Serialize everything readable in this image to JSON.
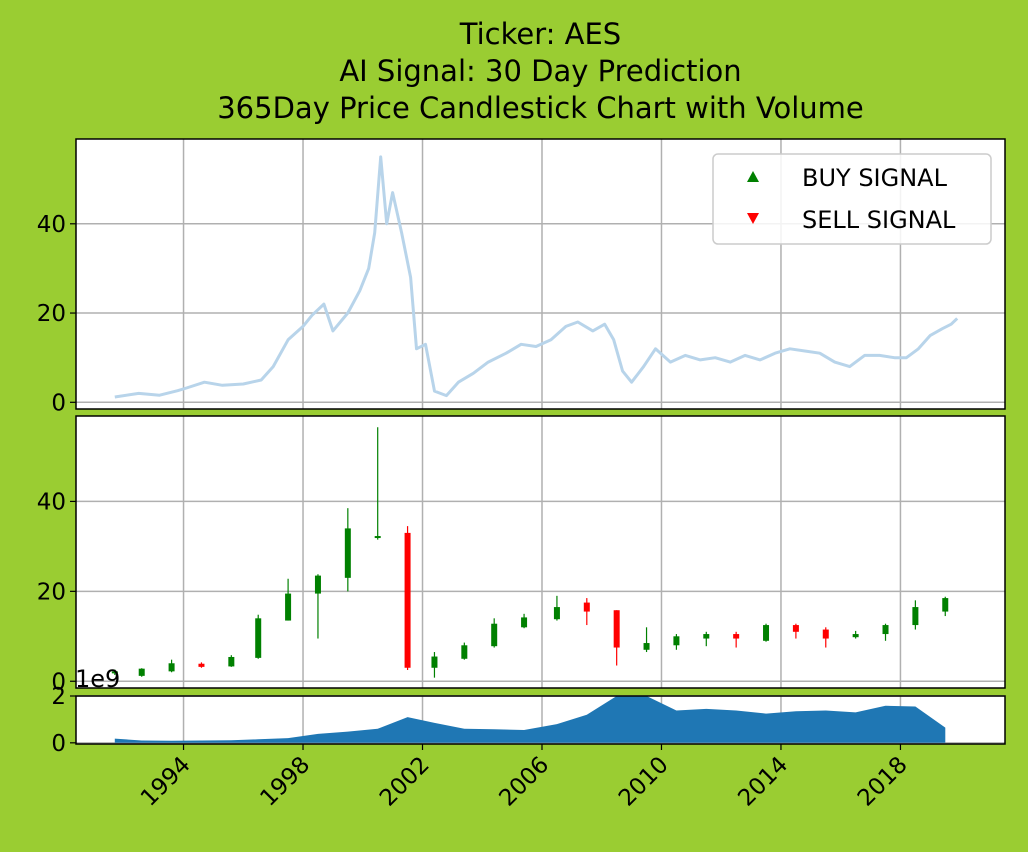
{
  "titles": {
    "line1": "Ticker: AES",
    "line2": "AI Signal: 30 Day Prediction",
    "line3": "365Day Price Candlestick Chart with Volume"
  },
  "legend": {
    "buy": "BUY SIGNAL",
    "sell": "SELL SIGNAL",
    "buy_color": "#008000",
    "sell_color": "#ff0000"
  },
  "volume_scale_label": "1e9",
  "colors": {
    "background": "#9acd32",
    "axes_bg": "#ffffff",
    "line": "#b8d4ea",
    "up": "#008000",
    "down": "#ff0000",
    "volume": "#1f77b4",
    "grid": "#b0b0b0"
  },
  "chart_data": [
    {
      "type": "line",
      "panel": "price",
      "xlim": [
        1990.4,
        2021.5
      ],
      "ylim": [
        -1.5,
        59
      ],
      "yticks": [
        0,
        20,
        40
      ],
      "x": [
        1991.7,
        1992.5,
        1993.2,
        1993.8,
        1994.1,
        1994.7,
        1995.3,
        1996.0,
        1996.6,
        1997.0,
        1997.5,
        1998.0,
        1998.3,
        1998.7,
        1999.0,
        1999.5,
        1999.9,
        2000.2,
        2000.4,
        2000.6,
        2000.8,
        2001.0,
        2001.3,
        2001.6,
        2001.8,
        2002.1,
        2002.4,
        2002.8,
        2003.2,
        2003.7,
        2004.2,
        2004.8,
        2005.3,
        2005.8,
        2006.3,
        2006.8,
        2007.2,
        2007.7,
        2008.1,
        2008.4,
        2008.7,
        2009.0,
        2009.4,
        2009.8,
        2010.3,
        2010.8,
        2011.3,
        2011.8,
        2012.3,
        2012.8,
        2013.3,
        2013.8,
        2014.3,
        2014.8,
        2015.3,
        2015.8,
        2016.3,
        2016.8,
        2017.3,
        2017.8,
        2018.2,
        2018.6,
        2019.0,
        2019.4,
        2019.7,
        2019.9
      ],
      "y": [
        1.2,
        2.0,
        1.6,
        2.6,
        3.2,
        4.5,
        3.8,
        4.1,
        5.0,
        8.0,
        14.0,
        17.0,
        19.5,
        22.0,
        16.0,
        20.0,
        25.0,
        30.0,
        38.0,
        55.0,
        40.0,
        47.0,
        38.0,
        28.0,
        12.0,
        13.0,
        2.5,
        1.5,
        4.5,
        6.5,
        9.0,
        11.0,
        13.0,
        12.5,
        14.0,
        17.0,
        18.0,
        16.0,
        17.5,
        14.0,
        7.0,
        4.5,
        8.0,
        12.0,
        9.0,
        10.5,
        9.5,
        10.0,
        9.0,
        10.5,
        9.5,
        11.0,
        12.0,
        11.5,
        11.0,
        9.0,
        8.0,
        10.5,
        10.5,
        10.0,
        10.0,
        12.0,
        15.0,
        16.5,
        17.5,
        18.8
      ]
    },
    {
      "type": "candlestick",
      "panel": "candles",
      "xlim": [
        1990.4,
        2021.5
      ],
      "ylim": [
        -1.5,
        59
      ],
      "yticks": [
        0,
        20,
        40
      ],
      "candles": [
        {
          "x": 1991.7,
          "open": 1.8,
          "close": 2.2,
          "high": 2.6,
          "low": 1.4
        },
        {
          "x": 1992.6,
          "open": 1.2,
          "close": 2.8,
          "high": 2.9,
          "low": 1.0
        },
        {
          "x": 1993.6,
          "open": 2.2,
          "close": 4.0,
          "high": 4.8,
          "low": 2.0
        },
        {
          "x": 1994.6,
          "open": 3.9,
          "close": 3.2,
          "high": 4.2,
          "low": 3.0
        },
        {
          "x": 1995.6,
          "open": 3.3,
          "close": 5.4,
          "high": 5.8,
          "low": 3.2
        },
        {
          "x": 1996.5,
          "open": 5.2,
          "close": 14.0,
          "high": 14.8,
          "low": 5.0
        },
        {
          "x": 1997.5,
          "open": 13.5,
          "close": 19.5,
          "high": 22.8,
          "low": 13.5
        },
        {
          "x": 1998.5,
          "open": 19.5,
          "close": 23.5,
          "high": 23.8,
          "low": 9.5
        },
        {
          "x": 1999.5,
          "open": 23.0,
          "close": 34.0,
          "high": 38.5,
          "low": 20.0
        },
        {
          "x": 2000.5,
          "open": 32.0,
          "close": 32.3,
          "high": 56.5,
          "low": 31.5
        },
        {
          "x": 2001.5,
          "open": 33.0,
          "close": 3.0,
          "high": 34.5,
          "low": 2.5
        },
        {
          "x": 2002.4,
          "open": 3.0,
          "close": 5.5,
          "high": 6.5,
          "low": 0.8
        },
        {
          "x": 2003.4,
          "open": 5.0,
          "close": 8.0,
          "high": 8.6,
          "low": 4.8
        },
        {
          "x": 2004.4,
          "open": 7.8,
          "close": 12.8,
          "high": 14.0,
          "low": 7.5
        },
        {
          "x": 2005.4,
          "open": 12.0,
          "close": 14.2,
          "high": 15.0,
          "low": 11.8
        },
        {
          "x": 2006.5,
          "open": 13.8,
          "close": 16.5,
          "high": 19.0,
          "low": 13.5
        },
        {
          "x": 2007.5,
          "open": 17.5,
          "close": 15.5,
          "high": 18.5,
          "low": 12.5
        },
        {
          "x": 2008.5,
          "open": 15.8,
          "close": 7.5,
          "high": 15.8,
          "low": 3.5
        },
        {
          "x": 2009.5,
          "open": 7.0,
          "close": 8.5,
          "high": 12.0,
          "low": 6.5
        },
        {
          "x": 2010.5,
          "open": 8.0,
          "close": 10.0,
          "high": 10.5,
          "low": 7.0
        },
        {
          "x": 2011.5,
          "open": 9.5,
          "close": 10.5,
          "high": 11.0,
          "low": 7.8
        },
        {
          "x": 2012.5,
          "open": 10.5,
          "close": 9.5,
          "high": 11.0,
          "low": 7.5
        },
        {
          "x": 2013.5,
          "open": 9.0,
          "close": 12.5,
          "high": 12.8,
          "low": 8.8
        },
        {
          "x": 2014.5,
          "open": 12.5,
          "close": 11.0,
          "high": 12.8,
          "low": 9.5
        },
        {
          "x": 2015.5,
          "open": 11.5,
          "close": 9.5,
          "high": 12.0,
          "low": 7.5
        },
        {
          "x": 2016.5,
          "open": 9.8,
          "close": 10.5,
          "high": 11.2,
          "low": 9.5
        },
        {
          "x": 2017.5,
          "open": 10.5,
          "close": 12.5,
          "high": 12.8,
          "low": 9.0
        },
        {
          "x": 2018.5,
          "open": 12.5,
          "close": 16.5,
          "high": 18.0,
          "low": 11.5
        },
        {
          "x": 2019.5,
          "open": 15.5,
          "close": 18.5,
          "high": 18.8,
          "low": 14.5
        }
      ]
    },
    {
      "type": "area",
      "panel": "volume",
      "xlim": [
        1990.4,
        2021.5
      ],
      "ylim": [
        -0.05,
        2.0
      ],
      "yticks": [
        0,
        2
      ],
      "y_scale": "1e9",
      "x": [
        1991.7,
        1992.6,
        1993.6,
        1994.6,
        1995.6,
        1996.5,
        1997.5,
        1998.5,
        1999.5,
        2000.5,
        2001.5,
        2002.4,
        2003.4,
        2004.4,
        2005.4,
        2006.5,
        2007.5,
        2008.5,
        2009.5,
        2010.5,
        2011.5,
        2012.5,
        2013.5,
        2014.5,
        2015.5,
        2016.5,
        2017.5,
        2018.5,
        2019.5
      ],
      "y": [
        0.18,
        0.1,
        0.09,
        0.1,
        0.11,
        0.15,
        0.2,
        0.38,
        0.48,
        0.6,
        1.1,
        0.85,
        0.6,
        0.58,
        0.55,
        0.8,
        1.2,
        2.0,
        2.0,
        1.38,
        1.45,
        1.38,
        1.25,
        1.35,
        1.38,
        1.3,
        1.58,
        1.55,
        0.65
      ]
    }
  ],
  "x_axis": {
    "tick_labels": [
      "1994",
      "1998",
      "2002",
      "2006",
      "2010",
      "2014",
      "2018"
    ],
    "ticks": [
      1994,
      1998,
      2002,
      2006,
      2010,
      2014,
      2018
    ]
  }
}
